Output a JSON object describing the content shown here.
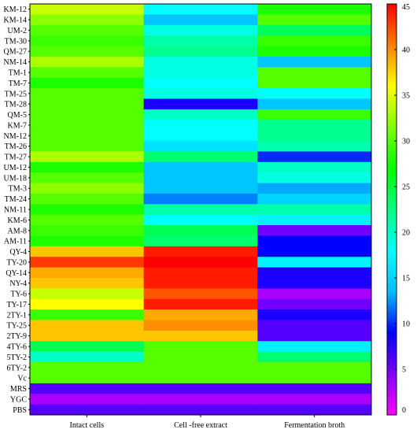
{
  "chart_data": {
    "type": "heatmap",
    "columns": [
      "Intact cells",
      "Cell -free extract",
      "Fermentation broth"
    ],
    "rows": [
      "KM-12",
      "KM-14",
      "UM-2",
      "TM-30",
      "QM-27",
      "NM-14",
      "TM-1",
      "TM-7",
      "TM-25",
      "TM-28",
      "QM-5",
      "KM-7",
      "NM-12",
      "TM-26",
      "TM-27",
      "UM-12",
      "UM-18",
      "TM-3",
      "TM-24",
      "NM-11",
      "KM-6",
      "AM-8",
      "AM-11",
      "QY-4",
      "TY-20",
      "QY-14",
      "NY-4",
      "TY-6",
      "TY-17",
      "2TY-1",
      "TY-25",
      "2TY-9",
      "4TY-6",
      "5TY-2",
      "6TY-2",
      "Vc",
      "MRS",
      "YGC",
      "PBS"
    ],
    "values": [
      [
        34,
        18,
        28
      ],
      [
        32,
        14,
        30
      ],
      [
        30,
        19,
        24
      ],
      [
        29,
        21,
        29
      ],
      [
        30,
        22,
        28
      ],
      [
        33,
        19,
        14
      ],
      [
        30,
        19,
        30
      ],
      [
        28,
        18,
        30
      ],
      [
        30,
        19,
        18
      ],
      [
        30,
        8,
        14
      ],
      [
        30,
        20,
        29
      ],
      [
        30,
        18,
        22
      ],
      [
        30,
        18,
        22
      ],
      [
        30,
        16,
        21
      ],
      [
        33,
        23,
        10
      ],
      [
        28,
        14,
        20
      ],
      [
        30,
        14,
        19
      ],
      [
        32,
        14,
        13
      ],
      [
        30,
        12,
        15
      ],
      [
        28,
        21,
        21
      ],
      [
        30,
        18,
        17
      ],
      [
        29,
        24,
        5
      ],
      [
        28,
        23,
        9
      ],
      [
        38,
        44,
        9
      ],
      [
        43,
        45,
        17
      ],
      [
        39,
        44,
        8
      ],
      [
        38,
        44,
        8
      ],
      [
        34,
        42,
        3
      ],
      [
        36,
        44,
        5
      ],
      [
        29,
        39,
        8
      ],
      [
        38,
        40,
        6
      ],
      [
        38,
        38,
        6
      ],
      [
        24,
        30,
        17
      ],
      [
        20,
        30,
        23
      ],
      [
        30,
        30,
        30
      ],
      [
        30,
        30,
        30
      ],
      [
        6,
        6,
        6
      ],
      [
        3,
        3,
        3
      ],
      [
        6,
        6,
        6
      ]
    ],
    "colorbar": {
      "min": 0,
      "max": 45,
      "ticks": [
        0,
        5,
        10,
        15,
        20,
        25,
        30,
        35,
        40,
        45
      ]
    }
  }
}
